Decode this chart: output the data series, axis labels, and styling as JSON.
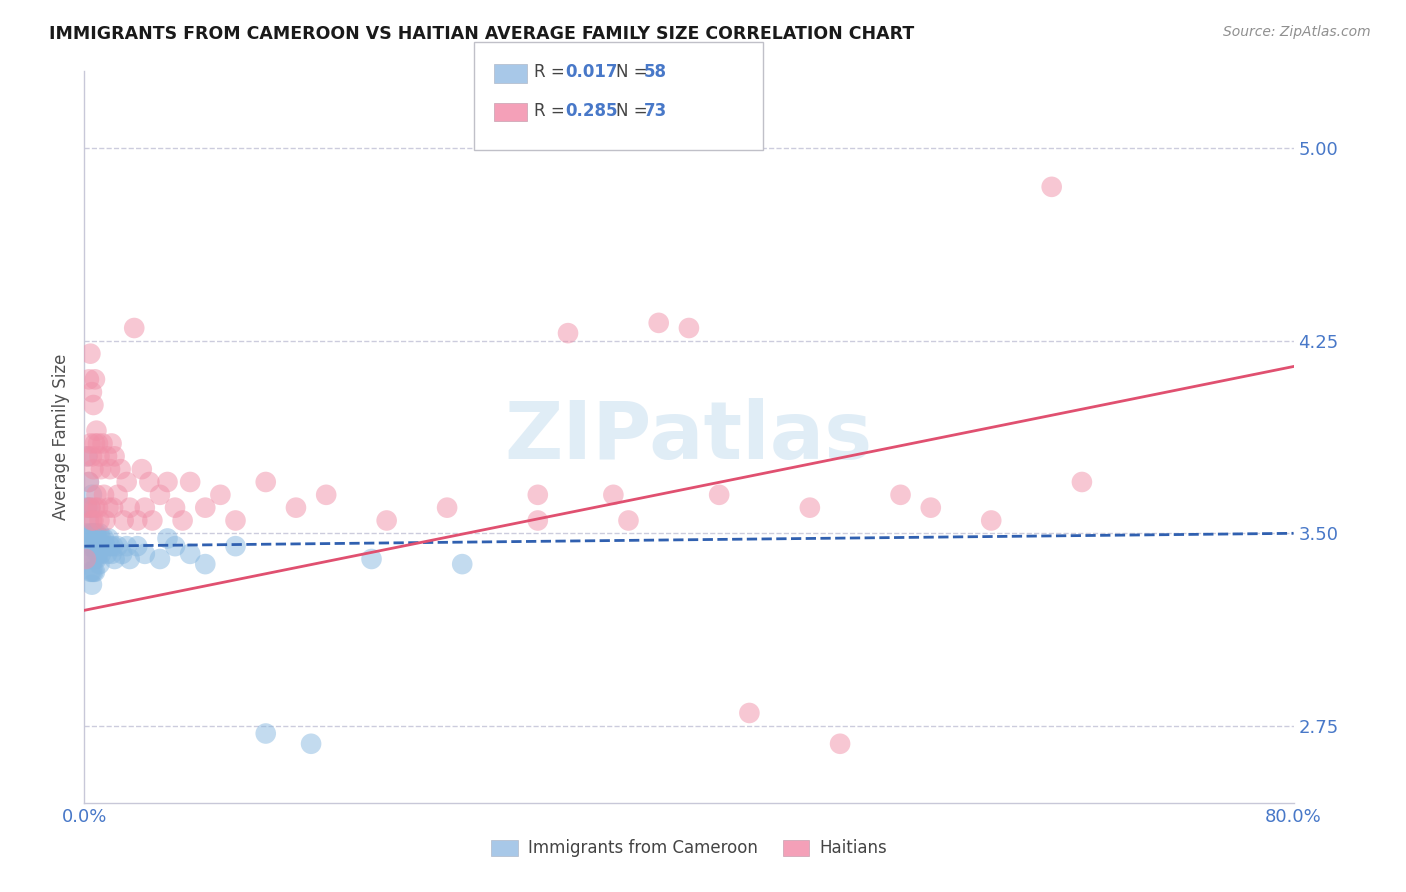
{
  "title": "IMMIGRANTS FROM CAMEROON VS HAITIAN AVERAGE FAMILY SIZE CORRELATION CHART",
  "source": "Source: ZipAtlas.com",
  "ylabel": "Average Family Size",
  "yticks": [
    2.75,
    3.5,
    4.25,
    5.0
  ],
  "xlim": [
    0.0,
    0.8
  ],
  "ylim": [
    2.45,
    5.3
  ],
  "watermark": "ZIPatlas",
  "legend_cam_R": "0.017",
  "legend_cam_N": "58",
  "legend_hai_R": "0.285",
  "legend_hai_N": "73",
  "cam_legend_color": "#a8c8e8",
  "hai_legend_color": "#f4a0b8",
  "cameroon_color": "#88b8e0",
  "haitian_color": "#f090a8",
  "trend_cameroon_color": "#3060b0",
  "trend_haitian_color": "#e05070",
  "grid_color": "#ccccdd",
  "tick_color": "#4878c8",
  "background_color": "#ffffff",
  "cameroon_x": [
    0.001,
    0.002,
    0.002,
    0.003,
    0.003,
    0.003,
    0.004,
    0.004,
    0.004,
    0.004,
    0.005,
    0.005,
    0.005,
    0.005,
    0.005,
    0.006,
    0.006,
    0.006,
    0.006,
    0.007,
    0.007,
    0.007,
    0.007,
    0.008,
    0.008,
    0.008,
    0.009,
    0.009,
    0.01,
    0.01,
    0.01,
    0.011,
    0.011,
    0.012,
    0.013,
    0.014,
    0.015,
    0.016,
    0.017,
    0.018,
    0.019,
    0.02,
    0.022,
    0.025,
    0.028,
    0.03,
    0.035,
    0.04,
    0.05,
    0.055,
    0.06,
    0.07,
    0.08,
    0.1,
    0.12,
    0.15,
    0.19,
    0.25
  ],
  "cameroon_y": [
    3.5,
    3.8,
    3.6,
    3.7,
    3.55,
    3.45,
    3.6,
    3.5,
    3.4,
    3.35,
    3.65,
    3.5,
    3.45,
    3.35,
    3.3,
    3.5,
    3.45,
    3.4,
    3.35,
    3.5,
    3.45,
    3.4,
    3.35,
    3.5,
    3.45,
    3.4,
    3.48,
    3.42,
    3.5,
    3.45,
    3.38,
    3.48,
    3.42,
    3.45,
    3.48,
    3.45,
    3.42,
    3.48,
    3.45,
    3.42,
    3.45,
    3.4,
    3.45,
    3.42,
    3.45,
    3.4,
    3.45,
    3.42,
    3.4,
    3.48,
    3.45,
    3.42,
    3.38,
    3.45,
    2.72,
    2.68,
    3.4,
    3.38
  ],
  "haitian_x": [
    0.001,
    0.002,
    0.002,
    0.003,
    0.003,
    0.004,
    0.004,
    0.004,
    0.005,
    0.005,
    0.005,
    0.006,
    0.006,
    0.006,
    0.007,
    0.007,
    0.007,
    0.008,
    0.008,
    0.009,
    0.009,
    0.01,
    0.01,
    0.011,
    0.012,
    0.013,
    0.014,
    0.015,
    0.016,
    0.017,
    0.018,
    0.019,
    0.02,
    0.022,
    0.024,
    0.026,
    0.028,
    0.03,
    0.033,
    0.035,
    0.038,
    0.04,
    0.043,
    0.045,
    0.05,
    0.055,
    0.06,
    0.065,
    0.07,
    0.08,
    0.09,
    0.1,
    0.12,
    0.14,
    0.16,
    0.2,
    0.24,
    0.3,
    0.36,
    0.42,
    0.48,
    0.54,
    0.6,
    0.66,
    0.32,
    0.38,
    0.44,
    0.5,
    0.56,
    0.64,
    0.3,
    0.35,
    0.4
  ],
  "haitian_y": [
    3.4,
    3.6,
    3.8,
    4.1,
    3.7,
    4.2,
    3.85,
    3.6,
    4.05,
    3.8,
    3.55,
    4.0,
    3.75,
    3.55,
    4.1,
    3.85,
    3.6,
    3.9,
    3.65,
    3.85,
    3.6,
    3.8,
    3.55,
    3.75,
    3.85,
    3.65,
    3.55,
    3.8,
    3.6,
    3.75,
    3.85,
    3.6,
    3.8,
    3.65,
    3.75,
    3.55,
    3.7,
    3.6,
    4.3,
    3.55,
    3.75,
    3.6,
    3.7,
    3.55,
    3.65,
    3.7,
    3.6,
    3.55,
    3.7,
    3.6,
    3.65,
    3.55,
    3.7,
    3.6,
    3.65,
    3.55,
    3.6,
    3.65,
    3.55,
    3.65,
    3.6,
    3.65,
    3.55,
    3.7,
    4.28,
    4.32,
    2.8,
    2.68,
    3.6,
    4.85,
    3.55,
    3.65,
    4.3
  ],
  "cam_trend_x0": 0.0,
  "cam_trend_x1": 0.8,
  "cam_trend_y0": 3.45,
  "cam_trend_y1": 3.5,
  "hai_trend_x0": 0.0,
  "hai_trend_x1": 0.8,
  "hai_trend_y0": 3.2,
  "hai_trend_y1": 4.15
}
